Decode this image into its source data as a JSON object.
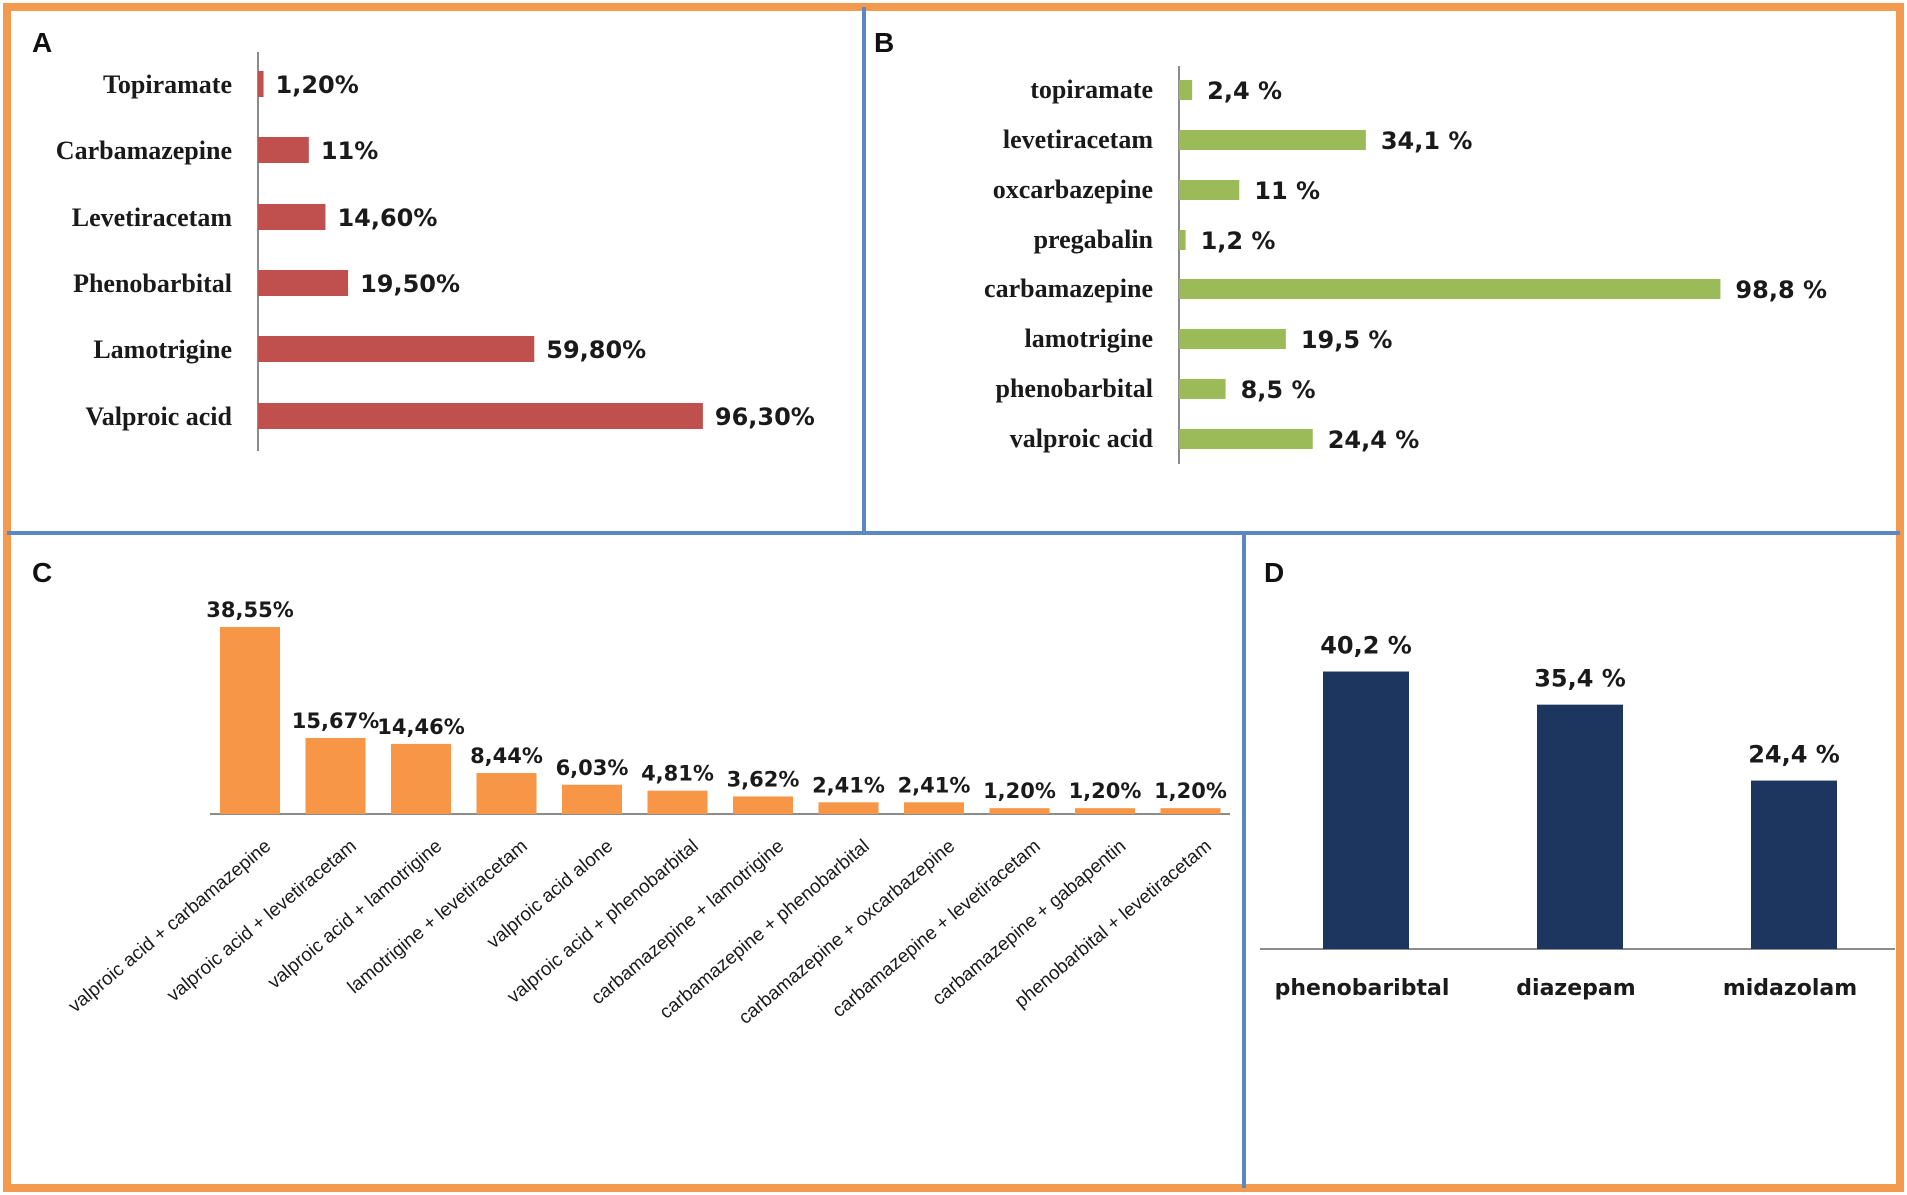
{
  "panels": {
    "a": "A",
    "b": "B",
    "c": "C",
    "d": "D"
  },
  "colors": {
    "frame": "#f39a4e",
    "divider": "#5b88c5",
    "panel_a_bar": "#c0504d",
    "panel_b_bar": "#9bbb59",
    "panel_c_bar": "#f79646",
    "panel_d_bar": "#1c3660",
    "axis": "#8c8c8c"
  },
  "chart_data": [
    {
      "id": "A",
      "type": "bar",
      "orientation": "horizontal",
      "categories": [
        "Topiramate",
        "Carbamazepine",
        "Levetiracetam",
        "Phenobarbital",
        "Lamotrigine",
        "Valproic acid"
      ],
      "values": [
        1.2,
        11,
        14.6,
        19.5,
        59.8,
        96.3
      ],
      "labels": [
        "1,20%",
        "11%",
        "14,60%",
        "19,50%",
        "59,80%",
        "96,30%"
      ],
      "xlim": [
        0,
        100
      ]
    },
    {
      "id": "B",
      "type": "bar",
      "orientation": "horizontal",
      "categories": [
        "topiramate",
        "levetiracetam",
        "oxcarbazepine",
        "pregabalin",
        "carbamazepine",
        "lamotrigine",
        "phenobarbital",
        "valproic acid"
      ],
      "values": [
        2.4,
        34.1,
        11,
        1.2,
        98.8,
        19.5,
        8.5,
        24.4
      ],
      "labels": [
        "2,4 %",
        "34,1 %",
        "11 %",
        "1,2 %",
        "98,8 %",
        "19,5 %",
        "8,5 %",
        "24,4 %"
      ],
      "xlim": [
        0,
        100
      ]
    },
    {
      "id": "C",
      "type": "bar",
      "orientation": "vertical",
      "categories": [
        "valproic acid + carbamazepine",
        "valproic acid + levetiracetam",
        "valproic acid + lamotrigine",
        "lamotrigine + levetiracetam",
        "valproic acid alone",
        "valproic acid + phenobarbital",
        "carbamazepine + lamotrigine",
        "carbamazepine + phenobarbital",
        "carbamazepine + oxcarbazepine",
        "carbamazepine + levetiracetam",
        "carbamazepine + gabapentin",
        "phenobarbital + levetiracetam"
      ],
      "values": [
        38.55,
        15.67,
        14.46,
        8.44,
        6.03,
        4.81,
        3.62,
        2.41,
        2.41,
        1.2,
        1.2,
        1.2
      ],
      "labels": [
        "38,55%",
        "15,67%",
        "14,46%",
        "8,44%",
        "6,03%",
        "4,81%",
        "3,62%",
        "2,41%",
        "2,41%",
        "1,20%",
        "1,20%",
        "1,20%"
      ],
      "ylim": [
        0,
        40
      ]
    },
    {
      "id": "D",
      "type": "bar",
      "orientation": "vertical",
      "categories": [
        "phenobaribtal",
        "diazepam",
        "midazolam"
      ],
      "values": [
        40.2,
        35.4,
        24.4
      ],
      "labels": [
        "40,2 %",
        "35,4 %",
        "24,4 %"
      ],
      "ylim": [
        0,
        41
      ]
    }
  ]
}
